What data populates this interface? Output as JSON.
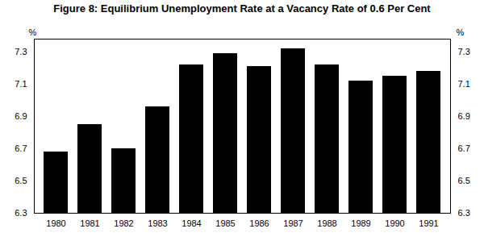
{
  "chart_data": {
    "type": "bar",
    "title": "Figure 8: Equilibrium Unemployment Rate at a Vacancy Rate of 0.6 Per Cent",
    "categories": [
      "1980",
      "1981",
      "1982",
      "1983",
      "1984",
      "1985",
      "1986",
      "1987",
      "1988",
      "1989",
      "1990",
      "1991"
    ],
    "values": [
      6.68,
      6.85,
      6.7,
      6.96,
      7.22,
      7.29,
      7.21,
      7.32,
      7.22,
      7.12,
      7.15,
      7.18
    ],
    "color": "#000000",
    "ylim": [
      6.3,
      7.38
    ],
    "yticks": [
      6.3,
      6.5,
      6.7,
      6.9,
      7.1,
      7.3
    ],
    "ylabel": "%",
    "y2lim": [
      6.3,
      7.38
    ],
    "y2ticks": [
      6.3,
      6.5,
      6.7,
      6.9,
      7.1,
      7.3
    ],
    "y2label": "%",
    "grid": false
  }
}
